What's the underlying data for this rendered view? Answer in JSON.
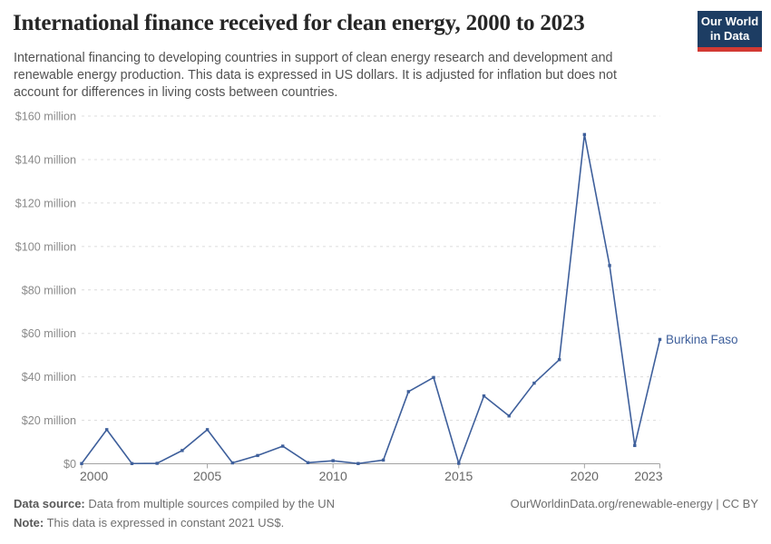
{
  "header": {
    "title": "International finance received for clean energy, 2000 to 2023",
    "subtitle": "International financing to developing countries in support of clean energy research and development and renewable energy production. This data is expressed in US dollars. It is adjusted for inflation but does not account for differences in living costs between countries.",
    "logo": {
      "line1": "Our World",
      "line2": "in Data"
    }
  },
  "chart_data": {
    "type": "line",
    "title": "International finance received for clean energy, 2000 to 2023",
    "x": [
      2000,
      2001,
      2002,
      2003,
      2004,
      2005,
      2006,
      2007,
      2008,
      2009,
      2010,
      2011,
      2012,
      2013,
      2014,
      2015,
      2016,
      2017,
      2018,
      2019,
      2020,
      2021,
      2022,
      2023
    ],
    "series": [
      {
        "name": "Burkina Faso",
        "color": "#3e5f9b",
        "values": [
          0.1,
          15.7,
          0.1,
          0.2,
          6.1,
          15.7,
          0.4,
          3.8,
          8.1,
          0.5,
          1.4,
          0.1,
          1.7,
          33.2,
          39.7,
          0.2,
          31.2,
          22.0,
          37.1,
          47.9,
          151.5,
          91.2,
          8.4,
          57.2
        ]
      }
    ],
    "xlabel": "",
    "ylabel": "",
    "xlim": [
      2000,
      2023
    ],
    "ylim": [
      0,
      160
    ],
    "x_ticks": [
      2000,
      2005,
      2010,
      2015,
      2020,
      2023
    ],
    "y_ticks": [
      {
        "value": 0,
        "label": "$0"
      },
      {
        "value": 20,
        "label": "$20 million"
      },
      {
        "value": 40,
        "label": "$40 million"
      },
      {
        "value": 60,
        "label": "$60 million"
      },
      {
        "value": 80,
        "label": "$80 million"
      },
      {
        "value": 100,
        "label": "$100 million"
      },
      {
        "value": 120,
        "label": "$120 million"
      },
      {
        "value": 140,
        "label": "$140 million"
      },
      {
        "value": 160,
        "label": "$160 million"
      }
    ],
    "grid": true,
    "legend_position": "end-of-line-label"
  },
  "colors": {
    "line": "#3e5f9b",
    "grid": "#dcdcdc",
    "axis": "#a3a3a3",
    "y_tick_text": "#8a8a8a",
    "x_tick_text": "#676767",
    "logo_bg": "#1d3d63",
    "logo_stripe": "#d23a33"
  },
  "footer": {
    "source_label": "Data source:",
    "source_text": " Data from multiple sources compiled by the UN",
    "note_label": "Note:",
    "note_text": " This data is expressed in constant 2021 US$.",
    "credit": "OurWorldinData.org/renewable-energy | CC BY"
  }
}
